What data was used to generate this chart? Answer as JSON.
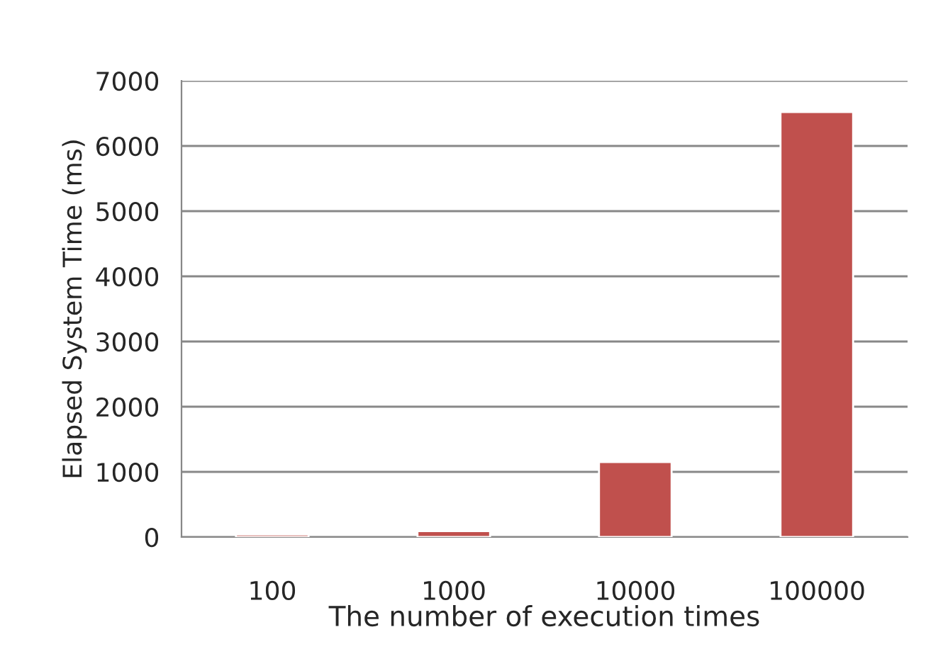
{
  "chart_data": {
    "type": "bar",
    "xlabel": "The number of execution times",
    "ylabel": "Elapsed System Time (ms)",
    "categories": [
      "100",
      "1000",
      "10000",
      "100000"
    ],
    "values": [
      40,
      90,
      1150,
      6520
    ],
    "color": "#c0504d",
    "ylim": [
      0,
      7000
    ],
    "yticks": [
      0,
      1000,
      2000,
      3000,
      4000,
      5000,
      6000,
      7000
    ],
    "grid": "y"
  }
}
